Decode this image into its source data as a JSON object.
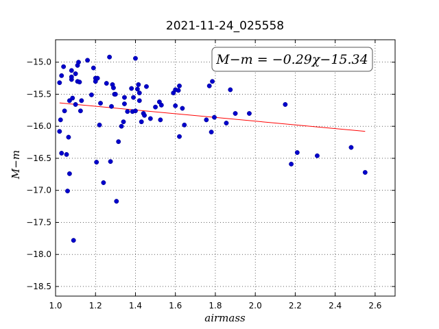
{
  "chart_data": {
    "type": "scatter",
    "title": "2021-11-24_025558",
    "xlabel": "airmass",
    "ylabel": "M−m",
    "xlim": [
      1.0,
      2.7
    ],
    "ylim": [
      -18.65,
      -14.65
    ],
    "xticks": [
      1.0,
      1.2,
      1.4,
      1.6,
      1.8,
      2.0,
      2.2,
      2.4,
      2.6
    ],
    "xtick_labels": [
      "1.0",
      "1.2",
      "1.4",
      "1.6",
      "1.8",
      "2.0",
      "2.2",
      "2.4",
      "2.6"
    ],
    "yticks": [
      -15.0,
      -15.5,
      -16.0,
      -16.5,
      -17.0,
      -17.5,
      -18.0,
      -18.5
    ],
    "ytick_labels": [
      "−15.0",
      "−15.5",
      "−16.0",
      "−16.5",
      "−17.0",
      "−17.5",
      "−18.0",
      "−18.5"
    ],
    "grid": true,
    "annotation": "M−m = −0.29χ−15.34",
    "fit": {
      "slope": -0.29,
      "intercept": -15.34,
      "x_range": [
        1.02,
        2.55
      ],
      "color": "#ff0000"
    },
    "marker_color": "#0000cc",
    "points": [
      [
        1.02,
        -15.32
      ],
      [
        1.025,
        -15.9
      ],
      [
        1.02,
        -16.08
      ],
      [
        1.03,
        -15.21
      ],
      [
        1.04,
        -15.07
      ],
      [
        1.045,
        -15.76
      ],
      [
        1.03,
        -16.42
      ],
      [
        1.055,
        -16.44
      ],
      [
        1.065,
        -16.17
      ],
      [
        1.07,
        -16.74
      ],
      [
        1.06,
        -17.01
      ],
      [
        1.07,
        -15.6
      ],
      [
        1.085,
        -15.56
      ],
      [
        1.08,
        -15.27
      ],
      [
        1.08,
        -15.23
      ],
      [
        1.08,
        -15.13
      ],
      [
        1.09,
        -17.78
      ],
      [
        1.1,
        -15.18
      ],
      [
        1.1,
        -15.66
      ],
      [
        1.11,
        -15.3
      ],
      [
        1.11,
        -15.05
      ],
      [
        1.115,
        -15.0
      ],
      [
        1.12,
        -15.31
      ],
      [
        1.125,
        -15.76
      ],
      [
        1.13,
        -15.6
      ],
      [
        1.16,
        -14.97
      ],
      [
        1.18,
        -15.51
      ],
      [
        1.19,
        -15.09
      ],
      [
        1.2,
        -15.25
      ],
      [
        1.2,
        -15.3
      ],
      [
        1.21,
        -15.25
      ],
      [
        1.205,
        -16.56
      ],
      [
        1.22,
        -15.98
      ],
      [
        1.225,
        -15.64
      ],
      [
        1.24,
        -16.88
      ],
      [
        1.255,
        -15.33
      ],
      [
        1.27,
        -14.92
      ],
      [
        1.275,
        -16.55
      ],
      [
        1.28,
        -15.69
      ],
      [
        1.285,
        -15.35
      ],
      [
        1.29,
        -15.4
      ],
      [
        1.295,
        -15.5
      ],
      [
        1.3,
        -15.5
      ],
      [
        1.305,
        -17.17
      ],
      [
        1.315,
        -16.24
      ],
      [
        1.33,
        -16.0
      ],
      [
        1.34,
        -15.93
      ],
      [
        1.345,
        -15.65
      ],
      [
        1.345,
        -15.55
      ],
      [
        1.36,
        -15.77
      ],
      [
        1.38,
        -15.41
      ],
      [
        1.385,
        -15.77
      ],
      [
        1.39,
        -15.55
      ],
      [
        1.4,
        -14.94
      ],
      [
        1.4,
        -15.76
      ],
      [
        1.41,
        -15.42
      ],
      [
        1.415,
        -15.35
      ],
      [
        1.42,
        -15.48
      ],
      [
        1.42,
        -15.6
      ],
      [
        1.43,
        -15.93
      ],
      [
        1.44,
        -15.8
      ],
      [
        1.445,
        -15.83
      ],
      [
        1.455,
        -15.38
      ],
      [
        1.475,
        -15.88
      ],
      [
        1.5,
        -15.7
      ],
      [
        1.52,
        -15.62
      ],
      [
        1.525,
        -15.9
      ],
      [
        1.53,
        -15.67
      ],
      [
        1.59,
        -15.48
      ],
      [
        1.6,
        -15.43
      ],
      [
        1.6,
        -15.68
      ],
      [
        1.615,
        -15.44
      ],
      [
        1.62,
        -16.16
      ],
      [
        1.62,
        -15.37
      ],
      [
        1.635,
        -15.72
      ],
      [
        1.645,
        -15.98
      ],
      [
        1.755,
        -15.9
      ],
      [
        1.77,
        -15.37
      ],
      [
        1.78,
        -16.09
      ],
      [
        1.785,
        -15.3
      ],
      [
        1.795,
        -15.86
      ],
      [
        1.855,
        -15.95
      ],
      [
        1.875,
        -15.43
      ],
      [
        1.9,
        -15.8
      ],
      [
        1.97,
        -15.8
      ],
      [
        2.15,
        -15.66
      ],
      [
        2.18,
        -16.59
      ],
      [
        2.21,
        -16.41
      ],
      [
        2.31,
        -16.46
      ],
      [
        2.48,
        -16.33
      ],
      [
        2.55,
        -16.72
      ]
    ]
  }
}
